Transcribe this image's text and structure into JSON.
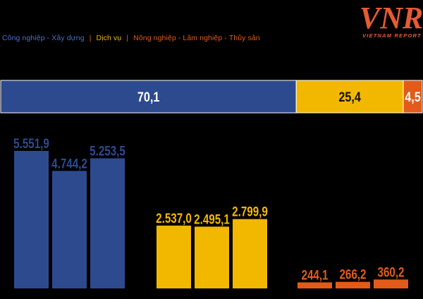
{
  "logo": {
    "mark": "VNR",
    "text": "VIETNAM REPORT"
  },
  "colors": {
    "industry": "#2e4a8f",
    "services": "#f2b800",
    "agriculture": "#e35b1a",
    "legend_industry": "#4a6fc7",
    "separator": "#e35b1a",
    "background": "#000000"
  },
  "legend": [
    {
      "label": "Công nghiệp - Xây dựng",
      "color_key": "legend_industry"
    },
    {
      "label": "Dịch vụ",
      "color_key": "services"
    },
    {
      "label": "Nông nghiệp - Lâm nghiệp - Thủy sản",
      "color_key": "agriculture"
    }
  ],
  "legend_separator": "|",
  "chart_data": [
    {
      "type": "bar",
      "orientation": "horizontal-stacked",
      "unit": "%",
      "segments": [
        {
          "name": "Công nghiệp - Xây dựng",
          "value": 70.1,
          "label": "70,1",
          "color_key": "industry"
        },
        {
          "name": "Dịch vụ",
          "value": 25.4,
          "label": "25,4",
          "color_key": "services"
        },
        {
          "name": "Nông nghiệp - Lâm nghiệp - Thủy sản",
          "value": 4.5,
          "label": "4,5",
          "color_key": "agriculture"
        }
      ]
    },
    {
      "type": "bar",
      "ylim": [
        0,
        6000
      ],
      "grid": false,
      "groups": [
        {
          "name": "Công nghiệp - Xây dựng",
          "color_key": "industry",
          "values": [
            5551.9,
            4744.2,
            5253.5
          ],
          "labels": [
            "5.551,9",
            "4.744,2",
            "5.253,5"
          ]
        },
        {
          "name": "Dịch vụ",
          "color_key": "services",
          "values": [
            2537.0,
            2495.1,
            2799.9
          ],
          "labels": [
            "2.537,0",
            "2.495,1",
            "2.799,9"
          ]
        },
        {
          "name": "Nông nghiệp - Lâm nghiệp - Thủy sản",
          "color_key": "agriculture",
          "values": [
            244.1,
            266.2,
            360.2
          ],
          "labels": [
            "244,1",
            "266,2",
            "360,2"
          ]
        }
      ]
    }
  ]
}
